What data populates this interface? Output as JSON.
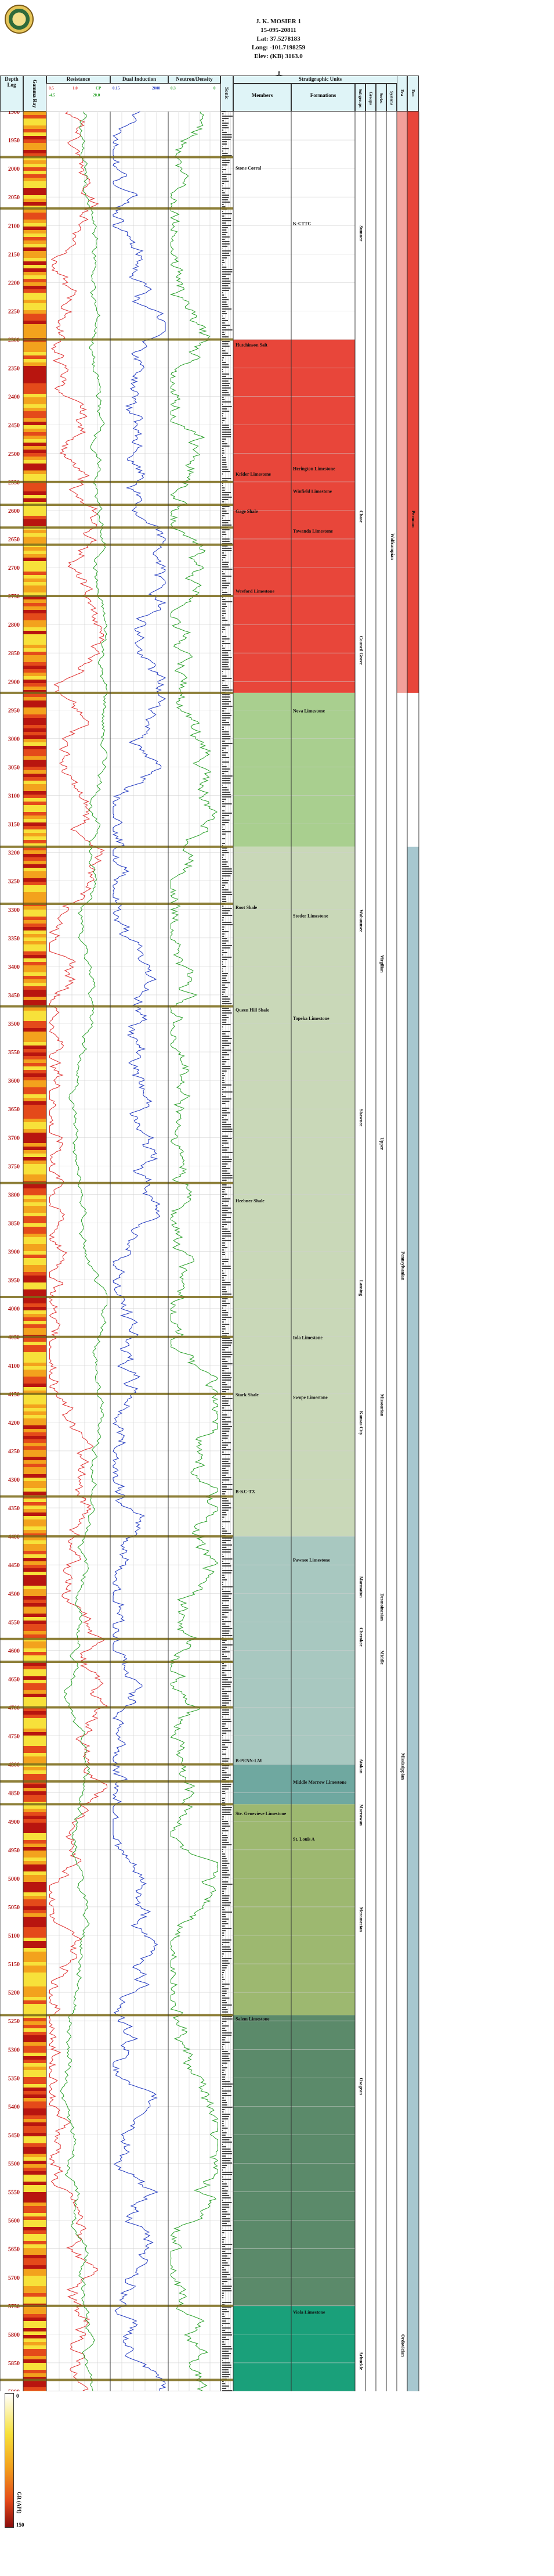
{
  "header": {
    "well_name": "J. K. MOSIER 1",
    "api": "15-095-20811",
    "lat": "Lat: 37.5278183",
    "long": "Long: -101.7198259",
    "elev": "Elev: (KB) 3163.0"
  },
  "columns": {
    "depth": "Depth",
    "log": "Log",
    "gamma_ray": "Gamma Ray",
    "resistance": "Resistance",
    "dual_induction": "Dual Induction",
    "neutron_density": "Neutron/Density",
    "sonic": "Sonic",
    "stratigraphic_units": "Stratigraphic Units",
    "members": "Members",
    "formations": "Formations",
    "subgroup": "Subgroups",
    "group": "Groups",
    "series": "Series",
    "system": "Systems",
    "era": "Era",
    "eon": "Eon"
  },
  "scales": {
    "gamma": [
      "0",
      "150"
    ],
    "resistance": [
      "0.5",
      "1.0",
      "CP"
    ],
    "resistance2": [
      "-4.5",
      "20.0"
    ],
    "dual": [
      "0.15",
      "2000"
    ],
    "neutron": [
      "0.3",
      "0"
    ],
    "sonic": [
      "140",
      "40"
    ]
  },
  "depths": [
    "1900",
    "1950",
    "2000",
    "2050",
    "2100",
    "2150",
    "2200",
    "2250",
    "2300",
    "2350",
    "2400",
    "2450",
    "2500",
    "2550",
    "2600",
    "2650",
    "2700",
    "2750",
    "2800",
    "2850",
    "2900",
    "2950",
    "3000",
    "3050",
    "3100",
    "3150",
    "3200",
    "3250",
    "3300",
    "3350",
    "3400",
    "3450",
    "3500",
    "3550",
    "3600",
    "3650",
    "3700",
    "3750",
    "3800",
    "3850",
    "3900",
    "3950",
    "4000",
    "4050",
    "4100",
    "4150",
    "4200",
    "4250",
    "4300",
    "4350",
    "4400",
    "4450",
    "4500",
    "4550",
    "4600",
    "4650",
    "4700",
    "4750",
    "4800",
    "4850",
    "4900",
    "4950",
    "5000",
    "5050",
    "5100",
    "5150",
    "5200",
    "5250",
    "5300",
    "5350",
    "5400",
    "5450",
    "5500",
    "5550",
    "5600",
    "5650",
    "5700",
    "5750",
    "5800",
    "5850",
    "5900"
  ],
  "members": [
    "Stone Corral",
    "K-CTTC",
    "Hutchinson Salt",
    "Herington Limestone",
    "Krider Limestone",
    "Winfield Limestone",
    "Gage Shale",
    "Towanda Limestone",
    "Wreford Limestone",
    "Neva Limestone",
    "Root Shale",
    "Stotler Limestone",
    "Queen Hill Shale",
    "Topeka Limestone",
    "Heebner Shale",
    "Iola Limestone",
    "Stark Shale",
    "Swope Limestone",
    "B-KC-TX",
    "Pawnee Limestone",
    "B-PENN-LM",
    "Middle Morrow Limestone",
    "Ste. Genevieve Limestone",
    "St. Louis A",
    "Salem Limestone",
    "Viola Limestone"
  ],
  "strat_labels": [
    "Sumner",
    "Chase",
    "Council Grove",
    "Wolfcampian",
    "Wabaunsee",
    "Shawnee",
    "Lansing",
    "Kansas City",
    "Marmaton",
    "Cherokee",
    "Atokan",
    "Morrowan",
    "Meramecian",
    "Osagean",
    "Virgilian",
    "Missourian",
    "Desmoinesian",
    "Pennsylvanian",
    "Mississippian",
    "Ordovician",
    "Permian",
    "Upper",
    "Middle",
    "Arbuckle"
  ],
  "legend": {
    "label": "GR (API)",
    "min": "0",
    "max": "150"
  },
  "colors": {
    "header_bg": "#dff4f7",
    "depth_text": "#b01010",
    "permian": "#e8463a",
    "penn_upper": "#c9d8b8",
    "penn_middle": "#a8c8c0",
    "miss": "#9db870",
    "ordo": "#1aa07a",
    "gamma_red": "#e03030",
    "resistance_green": "#28a028",
    "induction_blue": "#2038c0",
    "marker_olive": "#7a6a18"
  }
}
